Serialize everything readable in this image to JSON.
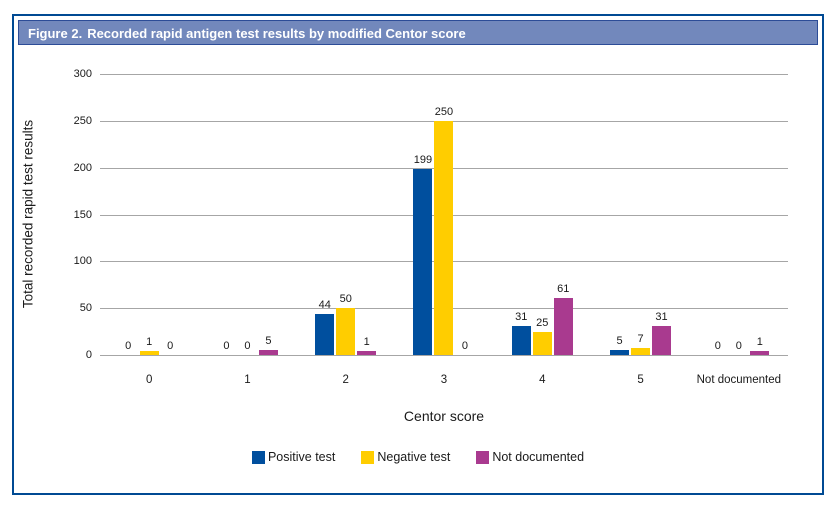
{
  "header": {
    "prefix": "Figure 2.",
    "title": "Recorded rapid antigen test results by modified Centor score"
  },
  "colors": {
    "frame_border": "#004a93",
    "header_bg": "#7288bc",
    "header_border": "#2c4c97",
    "grid": "#a6a6a6",
    "text": "#1a1a1a"
  },
  "chart_data": {
    "type": "bar",
    "title": "Recorded rapid antigen test results by modified Centor score",
    "categories": [
      "0",
      "1",
      "2",
      "3",
      "4",
      "5",
      "Not documented"
    ],
    "series": [
      {
        "name": "Positive test",
        "color": "#004f9e",
        "values": [
          0,
          0,
          44,
          199,
          31,
          5,
          0
        ]
      },
      {
        "name": "Negative test",
        "color": "#ffcd00",
        "values": [
          1,
          0,
          50,
          250,
          25,
          7,
          0
        ]
      },
      {
        "name": "Not documented",
        "color": "#a93a8f",
        "values": [
          0,
          5,
          1,
          0,
          61,
          31,
          1
        ]
      }
    ],
    "xlabel": "Centor score",
    "ylabel": "Total recorded rapid test results",
    "ylim": [
      0,
      300
    ],
    "yticks": [
      0,
      50,
      100,
      150,
      200,
      250,
      300
    ],
    "grid": true,
    "legend_position": "bottom",
    "data_labels": true
  }
}
